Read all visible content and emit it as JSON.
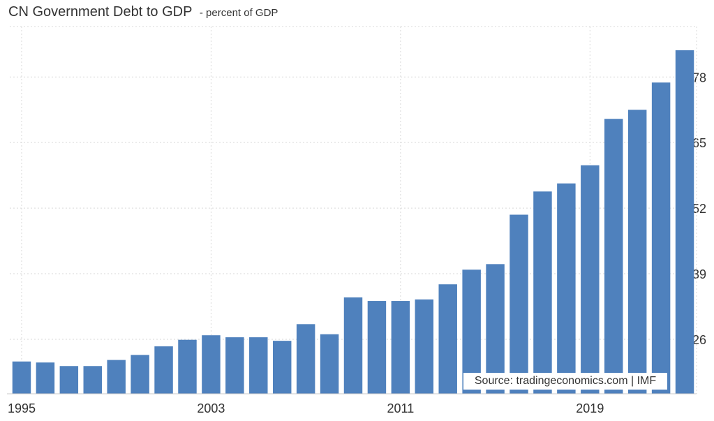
{
  "header": {
    "title": "CN Government Debt to GDP",
    "subtitle": "- percent of GDP"
  },
  "source": "Source: tradingeconomics.com | IMF",
  "colors": {
    "bar": "#4f81bd",
    "grid": "#d9d9d9",
    "text": "#333333"
  },
  "chart_data": {
    "type": "bar",
    "title": "CN Government Debt to GDP",
    "subtitle": "- percent of GDP",
    "xlabel": "",
    "ylabel": "",
    "categories": [
      "1995",
      "1996",
      "1997",
      "1998",
      "1999",
      "2000",
      "2001",
      "2002",
      "2003",
      "2004",
      "2005",
      "2006",
      "2007",
      "2008",
      "2009",
      "2010",
      "2011",
      "2012",
      "2013",
      "2014",
      "2015",
      "2016",
      "2017",
      "2018",
      "2019",
      "2020",
      "2021",
      "2022",
      "2023"
    ],
    "values": [
      21.6,
      21.4,
      20.7,
      20.7,
      21.9,
      22.9,
      24.6,
      25.9,
      26.8,
      26.4,
      26.4,
      25.7,
      29.0,
      27.0,
      34.3,
      33.6,
      33.6,
      33.9,
      36.9,
      39.8,
      40.9,
      50.7,
      55.3,
      56.9,
      60.5,
      69.7,
      71.5,
      76.9,
      83.3
    ],
    "x_tick_labels": [
      "1995",
      "2003",
      "2011",
      "2019"
    ],
    "y_ticks": [
      26,
      39,
      52,
      65,
      78
    ],
    "ylim": [
      15.2,
      88
    ],
    "grid": true,
    "y_axis_position": "right"
  }
}
